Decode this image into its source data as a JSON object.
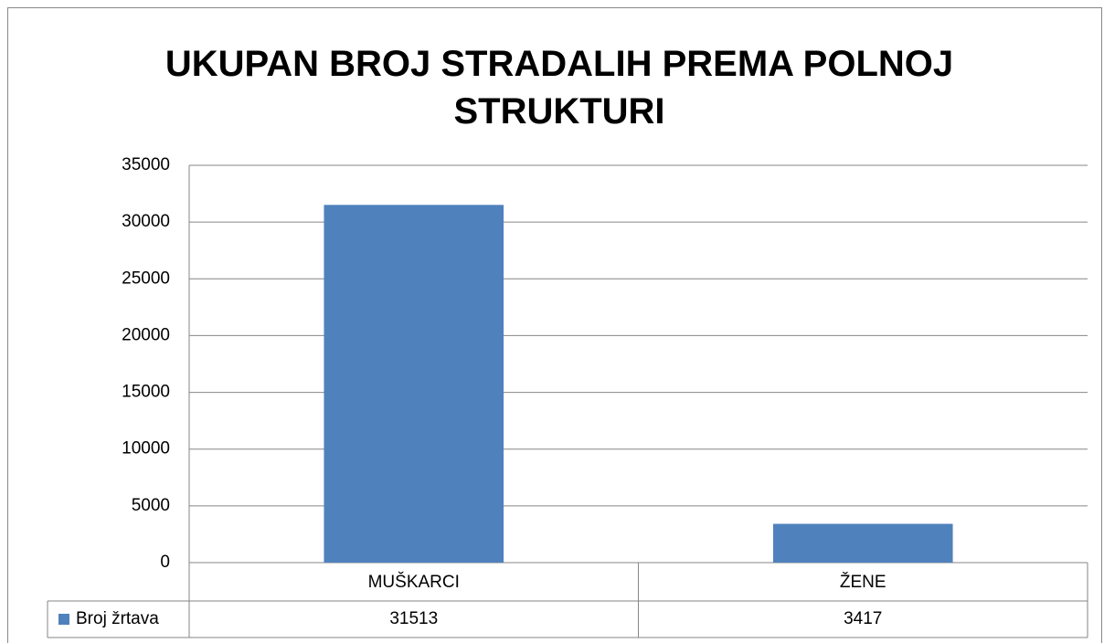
{
  "chart_data": {
    "type": "bar",
    "title": "UKUPAN BROJ STRADALIH PREMA POLNOJ STRUKTURI",
    "categories": [
      "MUŠKARCI",
      "ŽENE"
    ],
    "series": [
      {
        "name": "Broj žrtava",
        "color": "#4f81bd",
        "values": [
          31513,
          3417
        ]
      }
    ],
    "ylim": [
      0,
      35000
    ],
    "yticks": [
      0,
      5000,
      10000,
      15000,
      20000,
      25000,
      30000,
      35000
    ],
    "grid": true,
    "data_table": true
  }
}
